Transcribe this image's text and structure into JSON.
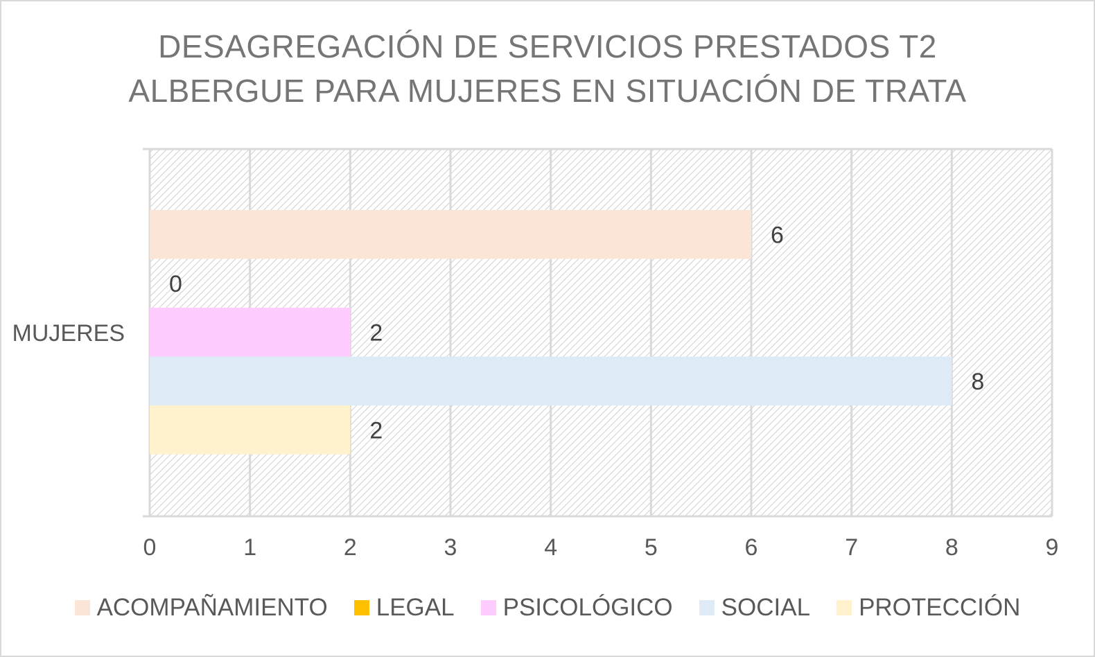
{
  "chart_data": {
    "type": "bar",
    "orientation": "horizontal",
    "title_lines": [
      "DESAGREGACIÓN DE SERVICIOS PRESTADOS T2",
      "ALBERGUE PARA MUJERES EN SITUACIÓN DE TRATA"
    ],
    "categories": [
      "MUJERES"
    ],
    "series": [
      {
        "name": "ACOMPAÑAMIENTO",
        "values": [
          6
        ],
        "color": "#fbe5d6"
      },
      {
        "name": "LEGAL",
        "values": [
          0
        ],
        "color": "#ffc000"
      },
      {
        "name": "PSICOLÓGICO",
        "values": [
          2
        ],
        "color": "#ffccff"
      },
      {
        "name": "SOCIAL",
        "values": [
          8
        ],
        "color": "#deebf7"
      },
      {
        "name": "PROTECCIÓN",
        "values": [
          2
        ],
        "color": "#fff2cc"
      }
    ],
    "xlim": [
      0,
      9
    ],
    "x_ticks": [
      "0",
      "1",
      "2",
      "3",
      "4",
      "5",
      "6",
      "7",
      "8",
      "9"
    ],
    "grid": true,
    "plot_background": "diagonal-hatch",
    "legend_position": "bottom"
  }
}
